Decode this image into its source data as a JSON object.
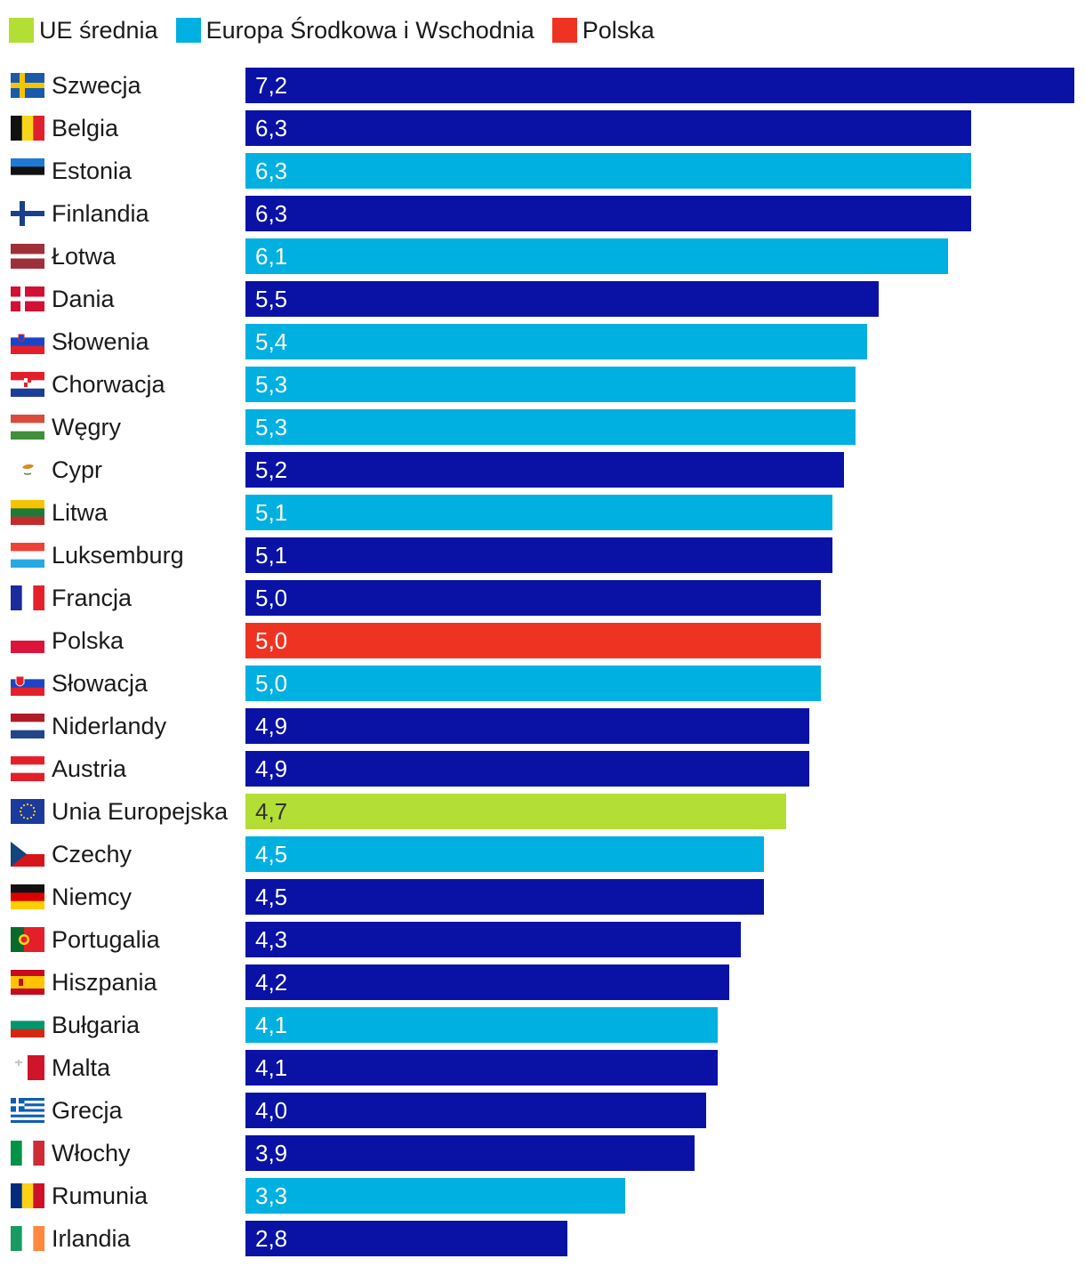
{
  "colors": {
    "eu_avg": "#b3de35",
    "cee": "#00b0e0",
    "poland": "#ef3322",
    "other": "#0a12a6"
  },
  "legend": [
    {
      "label": "UE średnia",
      "color": "#b3de35"
    },
    {
      "label": "Europa Środkowa i Wschodnia",
      "color": "#00b0e0"
    },
    {
      "label": "Polska",
      "color": "#ef3322"
    }
  ],
  "chart_data": {
    "type": "bar",
    "orientation": "horizontal",
    "title": "",
    "xlabel": "",
    "ylabel": "",
    "xlim": [
      0,
      7.2
    ],
    "categories": [
      "Szwecja",
      "Belgia",
      "Estonia",
      "Finlandia",
      "Łotwa",
      "Dania",
      "Słowenia",
      "Chorwacja",
      "Węgry",
      "Cypr",
      "Litwa",
      "Luksemburg",
      "Francja",
      "Polska",
      "Słowacja",
      "Niderlandy",
      "Austria",
      "Unia Europejska",
      "Czechy",
      "Niemcy",
      "Portugalia",
      "Hiszpania",
      "Bułgaria",
      "Malta",
      "Grecja",
      "Włochy",
      "Rumunia",
      "Irlandia"
    ],
    "values": [
      7.2,
      6.3,
      6.3,
      6.3,
      6.1,
      5.5,
      5.4,
      5.3,
      5.3,
      5.2,
      5.1,
      5.1,
      5.0,
      5.0,
      5.0,
      4.9,
      4.9,
      4.7,
      4.5,
      4.5,
      4.3,
      4.2,
      4.1,
      4.1,
      4.0,
      3.9,
      3.3,
      2.8
    ],
    "value_labels": [
      "7,2",
      "6,3",
      "6,3",
      "6,3",
      "6,1",
      "5,5",
      "5,4",
      "5,3",
      "5,3",
      "5,2",
      "5,1",
      "5,1",
      "5,0",
      "5,0",
      "5,0",
      "4,9",
      "4,9",
      "4,7",
      "4,5",
      "4,5",
      "4,3",
      "4,2",
      "4,1",
      "4,1",
      "4,0",
      "3,9",
      "3,3",
      "2,8"
    ],
    "groups": [
      "other",
      "other",
      "cee",
      "other",
      "cee",
      "other",
      "cee",
      "cee",
      "cee",
      "other",
      "cee",
      "other",
      "other",
      "poland",
      "cee",
      "other",
      "other",
      "eu_avg",
      "cee",
      "other",
      "other",
      "other",
      "cee",
      "other",
      "other",
      "other",
      "cee",
      "other"
    ],
    "flags": [
      "se",
      "be",
      "ee",
      "fi",
      "lv",
      "dk",
      "si",
      "hr",
      "hu",
      "cy",
      "lt",
      "lu",
      "fr",
      "pl",
      "sk",
      "nl",
      "at",
      "eu",
      "cz",
      "de",
      "pt",
      "es",
      "bg",
      "mt",
      "gr",
      "it",
      "ro",
      "ie"
    ]
  }
}
